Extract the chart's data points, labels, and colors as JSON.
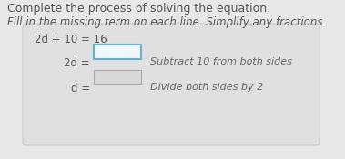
{
  "title1": "Complete the process of solving the equation.",
  "title2": "Fill in the missing term on each line. Simplify any fractions.",
  "line0": "2d + 10 = 16",
  "line1_eq": "2d = ",
  "line1_hint": "Subtract 10 from both sides",
  "line2_eq": "d = ",
  "line2_hint": "Divide both sides by 2",
  "bg_color": "#e8e8e8",
  "panel_color": "#e0e0e0",
  "title1_color": "#555555",
  "title2_color": "#555555",
  "eq_color": "#555555",
  "hint_color": "#666666",
  "input_box1_edge": "#6ab0cc",
  "input_box1_face": "#f0f8ff",
  "input_box2_edge": "#aaaaaa",
  "input_box2_face": "#d8d8d8"
}
